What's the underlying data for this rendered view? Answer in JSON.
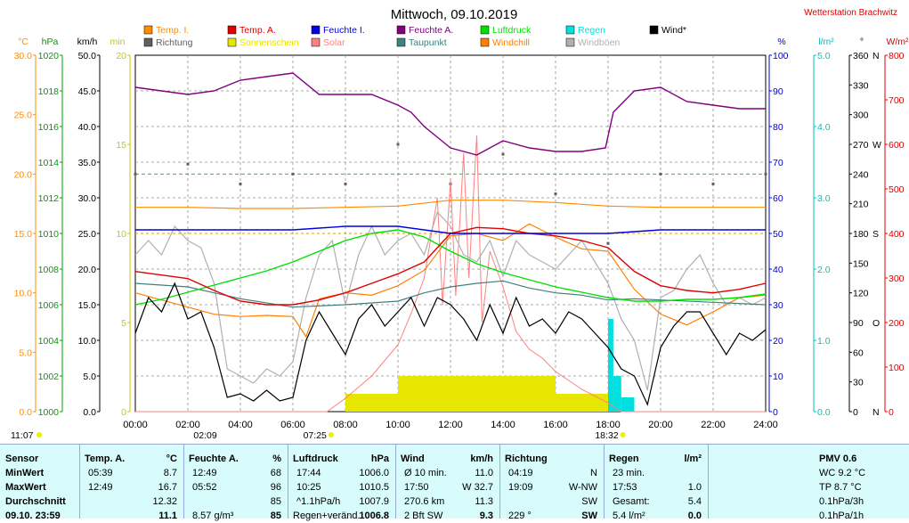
{
  "chart_data": {
    "type": "line",
    "title": "Mittwoch, 09.10.2019",
    "station": "Wetterstation Brachwitz",
    "x_ticks": [
      "00:00",
      "02:00",
      "04:00",
      "06:00",
      "08:00",
      "10:00",
      "12:00",
      "14:00",
      "16:00",
      "18:00",
      "20:00",
      "22:00",
      "24:00"
    ],
    "sun_markers": {
      "sunrise": "07:25",
      "sunset": "18:32",
      "moonrise": "02:09"
    },
    "left_markers": {
      "a": "11:07"
    },
    "legend": [
      {
        "name": "Temp. I.",
        "color": "#ff8c00"
      },
      {
        "name": "Richtung",
        "color": "#606060"
      },
      {
        "name": "Temp. A.",
        "color": "#e00000"
      },
      {
        "name": "Sonnenschein",
        "color": "#e6e600"
      },
      {
        "name": "Feuchte I.",
        "color": "#0000e0"
      },
      {
        "name": "Solar",
        "color": "#ff8080"
      },
      {
        "name": "Feuchte A.",
        "color": "#800080"
      },
      {
        "name": "Taupunkt",
        "color": "#408080"
      },
      {
        "name": "Luftdruck",
        "color": "#00e000"
      },
      {
        "name": "Windchill",
        "color": "#ff8000"
      },
      {
        "name": "Regen",
        "color": "#00e0e0"
      },
      {
        "name": "Windböen",
        "color": "#b0b0b0"
      },
      {
        "name": "Wind*",
        "color": "#000000"
      }
    ],
    "axes_left": [
      {
        "unit": "°C",
        "color": "#ff8c00",
        "range": [
          0,
          30
        ],
        "ticks": [
          "0.0",
          "5.0",
          "10.0",
          "15.0",
          "20.0",
          "25.0",
          "30.0"
        ]
      },
      {
        "unit": "hPa",
        "color": "#00a000",
        "range": [
          1000,
          1020
        ],
        "ticks": [
          "1000",
          "1002",
          "1004",
          "1006",
          "1008",
          "1010",
          "1012",
          "1014",
          "1016",
          "1018",
          "1020"
        ]
      },
      {
        "unit": "km/h",
        "color": "#000000",
        "range": [
          0,
          50
        ],
        "ticks": [
          "0.0",
          "5.0",
          "10.0",
          "15.0",
          "20.0",
          "25.0",
          "30.0",
          "35.0",
          "40.0",
          "45.0",
          "50.0"
        ]
      },
      {
        "unit": "min",
        "color": "#c8c800",
        "range": [
          0,
          20
        ],
        "ticks": [
          "0",
          "5",
          "10",
          "15",
          "20"
        ]
      }
    ],
    "axes_right": [
      {
        "unit": "%",
        "color": "#0000c0",
        "range": [
          0,
          100
        ],
        "ticks": [
          "0",
          "10",
          "20",
          "30",
          "40",
          "50",
          "60",
          "70",
          "80",
          "90",
          "100"
        ]
      },
      {
        "unit": "l/m²",
        "color": "#00c0c0",
        "range": [
          0,
          5
        ],
        "ticks": [
          "0.0",
          "1.0",
          "2.0",
          "3.0",
          "4.0",
          "5.0"
        ]
      },
      {
        "unit": "°",
        "color": "#000000",
        "range": [
          0,
          360
        ],
        "ticks": [
          "0",
          "30",
          "60",
          "90",
          "120",
          "150",
          "180",
          "210",
          "240",
          "270",
          "300",
          "330",
          "360"
        ],
        "dirs": {
          "0": "N",
          "90": "O",
          "180": "S",
          "270": "W",
          "360": "N"
        }
      },
      {
        "unit": "W/m²",
        "color": "#e00000",
        "range": [
          0,
          800
        ],
        "ticks": [
          "0",
          "100",
          "200",
          "300",
          "400",
          "500",
          "600",
          "700",
          "800"
        ]
      }
    ],
    "series": [
      {
        "name": "Temp. I.",
        "x": [
          0,
          2,
          4,
          6,
          8,
          10,
          12,
          14,
          16,
          18,
          20,
          22,
          24
        ],
        "y": [
          17.2,
          17.2,
          17.1,
          17.1,
          17.2,
          17.3,
          17.8,
          17.8,
          17.6,
          17.3,
          17.2,
          17.2,
          17.2
        ]
      },
      {
        "name": "Temp. A.",
        "x": [
          0,
          1,
          2,
          3,
          4,
          5,
          6,
          7,
          8,
          9,
          10,
          11,
          12,
          13,
          14,
          15,
          16,
          17,
          18,
          19,
          20,
          21,
          22,
          23,
          24
        ],
        "y": [
          11.8,
          11.5,
          11.2,
          10.2,
          9.3,
          9.0,
          9.0,
          9.4,
          10.0,
          10.8,
          11.6,
          12.6,
          15.0,
          15.5,
          15.4,
          15.0,
          14.8,
          14.4,
          13.8,
          11.8,
          10.6,
          10.2,
          10.0,
          10.3,
          10.8
        ]
      },
      {
        "name": "Feuchte A.",
        "x": [
          0,
          1,
          2,
          3,
          4,
          5,
          6,
          7,
          8,
          9,
          10,
          10.5,
          11,
          11.5,
          12,
          12.5,
          13,
          14,
          15,
          16,
          17,
          17.9,
          18.2,
          19,
          20,
          21,
          22,
          23,
          24
        ],
        "y": [
          91,
          90,
          89,
          90,
          93,
          94,
          95,
          89,
          89,
          89,
          86,
          84,
          80,
          77,
          74,
          73,
          72,
          76,
          74,
          73,
          73,
          74,
          84,
          90,
          91,
          87,
          86,
          85,
          85
        ]
      },
      {
        "name": "Feuchte I.",
        "x": [
          0,
          2,
          4,
          6,
          8,
          10,
          12,
          14,
          16,
          18,
          20,
          22,
          24
        ],
        "y": [
          51,
          51,
          51,
          51,
          52,
          52,
          50,
          50,
          50,
          50,
          51,
          51,
          51
        ]
      },
      {
        "name": "Luftdruck",
        "x": [
          0,
          1,
          2,
          3,
          4,
          5,
          6,
          7,
          8,
          9,
          10,
          11,
          12,
          13,
          14,
          15,
          16,
          17,
          18,
          19,
          20,
          21,
          22,
          23,
          24
        ],
        "y": [
          1006.0,
          1006.3,
          1006.7,
          1007.1,
          1007.5,
          1007.9,
          1008.4,
          1009.0,
          1009.6,
          1010.0,
          1010.2,
          1009.8,
          1009.0,
          1008.3,
          1007.8,
          1007.4,
          1007.0,
          1006.7,
          1006.4,
          1006.2,
          1006.2,
          1006.3,
          1006.3,
          1006.4,
          1006.6
        ]
      },
      {
        "name": "Taupunkt",
        "x": [
          0,
          2,
          4,
          6,
          8,
          10,
          11,
          12,
          13,
          14,
          15,
          16,
          17,
          18,
          19,
          20,
          22,
          24
        ],
        "y": [
          10.8,
          10.5,
          9.5,
          8.8,
          9.0,
          9.3,
          10.0,
          10.5,
          10.8,
          11.0,
          10.4,
          10.0,
          9.8,
          9.4,
          9.5,
          9.4,
          9.2,
          9.0
        ]
      },
      {
        "name": "Windchill",
        "x": [
          0,
          1,
          2,
          3,
          4,
          5,
          6,
          6.5,
          7,
          8,
          9,
          10,
          11,
          12,
          13,
          14,
          15,
          16,
          17,
          18,
          19,
          20,
          21,
          22,
          23,
          24
        ],
        "y": [
          10.0,
          9.4,
          8.8,
          8.2,
          8.0,
          8.1,
          8.0,
          6.3,
          9.5,
          10.0,
          9.8,
          10.6,
          11.9,
          14.8,
          15.0,
          14.4,
          15.8,
          14.7,
          13.7,
          13.5,
          10.3,
          8.2,
          7.3,
          8.4,
          9.6,
          9.8
        ]
      },
      {
        "name": "Wind*",
        "x": [
          0,
          0.5,
          1,
          1.5,
          2,
          2.5,
          3,
          3.5,
          4,
          4.5,
          5,
          5.5,
          6,
          6.5,
          7,
          7.5,
          8,
          8.5,
          9,
          9.5,
          10,
          10.5,
          11,
          11.5,
          12,
          12.5,
          13,
          13.5,
          14,
          14.5,
          15,
          15.5,
          16,
          16.5,
          17,
          17.5,
          18,
          18.5,
          19,
          19.5,
          20,
          20.5,
          21,
          21.5,
          22,
          22.5,
          23,
          23.5,
          24
        ],
        "y": [
          11.0,
          16.0,
          14.0,
          18.0,
          13.0,
          14.0,
          9.0,
          2.0,
          2.5,
          1.5,
          3.0,
          1.5,
          2.0,
          10.0,
          14.0,
          11.0,
          8.0,
          13.0,
          15.0,
          12.0,
          14.0,
          16.0,
          12.0,
          16.0,
          15.0,
          13.0,
          10.0,
          15.0,
          11.0,
          16.0,
          12.0,
          13.0,
          11.0,
          14.0,
          13.0,
          11.0,
          9.0,
          6.0,
          5.0,
          1.0,
          9.0,
          12.0,
          14.0,
          14.0,
          11.0,
          8.0,
          11.0,
          10.0,
          11.5
        ]
      },
      {
        "name": "Windböen",
        "x": [
          0,
          0.5,
          1,
          1.5,
          2,
          2.5,
          3,
          3.5,
          4,
          4.5,
          5,
          5.5,
          6,
          6.5,
          7,
          7.5,
          8,
          8.5,
          9,
          9.5,
          10,
          10.5,
          11,
          11.5,
          12,
          12.5,
          13,
          13.5,
          14,
          14.5,
          15,
          15.5,
          16,
          16.5,
          17,
          17.5,
          18,
          18.5,
          19,
          19.5,
          20,
          20.5,
          21,
          21.5,
          22,
          22.5,
          23,
          23.5,
          24
        ],
        "y": [
          22.0,
          24.0,
          22.0,
          26.0,
          24.0,
          23.0,
          18.0,
          6.0,
          5.0,
          4.0,
          6.0,
          5.0,
          7.0,
          16.0,
          22.0,
          24.0,
          15.0,
          22.0,
          26.0,
          22.0,
          24.0,
          25.0,
          22.0,
          28.0,
          26.0,
          22.0,
          21.0,
          24.0,
          19.0,
          24.0,
          22.0,
          21.0,
          20.0,
          22.0,
          24.0,
          21.0,
          18.0,
          13.0,
          10.0,
          3.0,
          16.0,
          17.0,
          20.0,
          22.0,
          18.0,
          15.0,
          16.0,
          15.0,
          16.0
        ]
      },
      {
        "name": "Solar",
        "x": [
          0,
          7.3,
          8,
          9,
          10,
          10.5,
          11,
          11.5,
          11.7,
          12,
          12.2,
          12.5,
          12.7,
          13,
          13.2,
          13.5,
          14,
          14.5,
          15,
          15.5,
          16,
          17,
          18,
          18.5,
          24
        ],
        "y": [
          0,
          0,
          30,
          80,
          150,
          220,
          300,
          480,
          240,
          520,
          260,
          580,
          300,
          620,
          200,
          360,
          280,
          180,
          140,
          120,
          90,
          50,
          20,
          0,
          0
        ]
      },
      {
        "name": "Sonnenschein",
        "x": [
          0,
          7.6,
          8,
          9,
          10,
          11,
          12,
          13,
          14,
          15,
          16,
          17,
          18,
          18.5,
          24
        ],
        "y": [
          0,
          0,
          1.0,
          1.0,
          2.0,
          2.0,
          2.0,
          2.0,
          2.0,
          2.0,
          1.0,
          1.0,
          1.0,
          0,
          0
        ]
      },
      {
        "name": "Regen",
        "x": [
          0,
          17.9,
          18,
          18.2,
          18.5,
          19,
          24
        ],
        "y": [
          0,
          0,
          1.3,
          0.5,
          0.2,
          0,
          0
        ]
      },
      {
        "name": "Richtung",
        "x": [
          0,
          2,
          4,
          6,
          8,
          10,
          12,
          14,
          16,
          18,
          20,
          22,
          24
        ],
        "y": [
          240,
          250,
          230,
          240,
          230,
          270,
          230,
          260,
          220,
          170,
          240,
          230,
          240
        ]
      }
    ]
  },
  "table": {
    "col1": {
      "header": "Sensor",
      "rows": [
        "MinWert",
        "MaxWert",
        "Durchschnitt",
        "09.10. 23:59"
      ]
    },
    "col2": {
      "header": "Temp. A.",
      "unit": "°C",
      "rows": [
        [
          "05:39",
          "8.7"
        ],
        [
          "12:49",
          "16.7"
        ],
        [
          "",
          "12.32"
        ],
        [
          "",
          "11.1"
        ]
      ]
    },
    "col3": {
      "header": "Feuchte A.",
      "unit": "%",
      "rows": [
        [
          "12:49",
          "68"
        ],
        [
          "05:52",
          "96"
        ],
        [
          "",
          "85"
        ],
        [
          "8.57 g/m³",
          "85"
        ]
      ]
    },
    "col4": {
      "header": "Luftdruck",
      "unit": "hPa",
      "rows": [
        [
          "17:44",
          "1006.0"
        ],
        [
          "10:25",
          "1010.5"
        ],
        [
          "^1.1hPa/h",
          "1007.9"
        ],
        [
          "Regen+veränd.",
          "1006.8"
        ]
      ]
    },
    "col5": {
      "header": "Wind",
      "unit": "km/h",
      "rows": [
        [
          "Ø 10 min.",
          "11.0"
        ],
        [
          "17:50",
          "W 32.7"
        ],
        [
          "270.6 km",
          "11.3"
        ],
        [
          "2 Bft SW",
          "9.3"
        ]
      ]
    },
    "col6": {
      "header": "Richtung",
      "rows": [
        [
          "04:19",
          "N"
        ],
        [
          "19:09",
          "W-NW"
        ],
        [
          "",
          "SW"
        ],
        [
          "229 °",
          "SW"
        ]
      ]
    },
    "col7": {
      "header": "Regen",
      "unit": "l/m²",
      "rows": [
        [
          "23 min.",
          ""
        ],
        [
          "17:53",
          "1.0"
        ],
        [
          "Gesamt:",
          "5.4"
        ],
        [
          "5.4 l/m²",
          "0.0"
        ]
      ]
    },
    "col8": {
      "header": "PMV 0.6",
      "rows": [
        "WC 9.2 °C",
        "TP 8.7 °C",
        "0.1hPa/3h",
        "0.1hPa/1h"
      ]
    }
  }
}
